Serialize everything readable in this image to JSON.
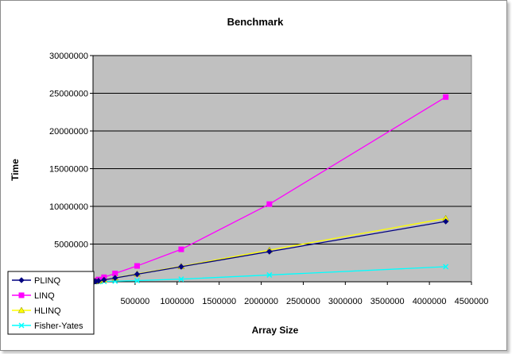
{
  "chart_data": {
    "type": "line",
    "title": "Benchmark",
    "xlabel": "Array Size",
    "ylabel": "Time",
    "xlim": [
      0,
      4500000
    ],
    "ylim": [
      0,
      30000000
    ],
    "xticks": [
      500000,
      1000000,
      1500000,
      2000000,
      2500000,
      3000000,
      3500000,
      4000000,
      4500000
    ],
    "yticks": [
      5000000,
      10000000,
      15000000,
      20000000,
      25000000,
      30000000
    ],
    "grid": "horizontal",
    "legend_position": "bottom-left",
    "plot_background": "#c0c0c0",
    "series": [
      {
        "name": "PLINQ",
        "color": "#000080",
        "marker": "diamond",
        "x": [
          16384,
          32768,
          65536,
          131072,
          262144,
          524288,
          1048576,
          2097152,
          4194304
        ],
        "y": [
          30000,
          60000,
          120000,
          250000,
          500000,
          1000000,
          2000000,
          4000000,
          8000000
        ]
      },
      {
        "name": "LINQ",
        "color": "#ff00ff",
        "marker": "square",
        "x": [
          16384,
          32768,
          65536,
          131072,
          262144,
          524288,
          1048576,
          2097152,
          4194304
        ],
        "y": [
          80000,
          150000,
          300000,
          600000,
          1100000,
          2100000,
          4300000,
          10300000,
          24500000
        ]
      },
      {
        "name": "HLINQ",
        "color": "#ffff00",
        "marker": "triangle",
        "x": [
          16384,
          32768,
          65536,
          131072,
          262144,
          524288,
          1048576,
          2097152,
          4194304
        ],
        "y": [
          30000,
          60000,
          130000,
          260000,
          520000,
          1050000,
          2050000,
          4200000,
          8400000
        ]
      },
      {
        "name": "Fisher-Yates",
        "color": "#00ffff",
        "marker": "x",
        "x": [
          16384,
          32768,
          65536,
          131072,
          262144,
          524288,
          1048576,
          2097152,
          4194304
        ],
        "y": [
          5000,
          10000,
          20000,
          40000,
          80000,
          160000,
          350000,
          900000,
          2000000
        ]
      }
    ]
  }
}
